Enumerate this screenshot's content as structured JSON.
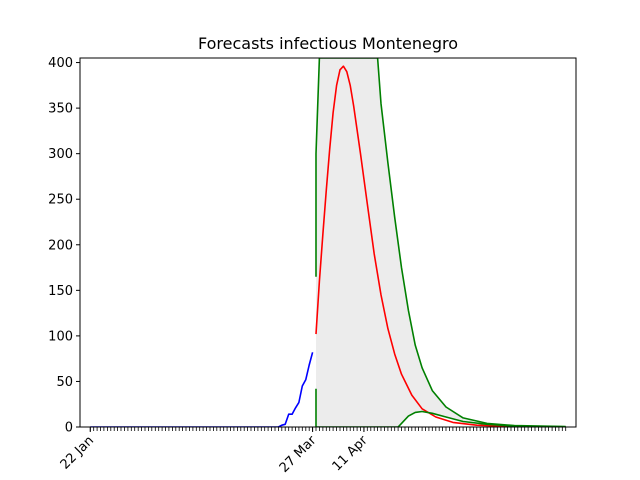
{
  "chart_data": {
    "type": "line",
    "title": "Forecasts infectious Montenegro",
    "xlabel": "",
    "ylabel": "",
    "x_start": "22 Jan",
    "x_end": "9 Jun",
    "xlim": [
      "19 Jan",
      "12 Jun"
    ],
    "ylim": [
      0,
      405
    ],
    "yticks": [
      0,
      50,
      100,
      150,
      200,
      250,
      300,
      350,
      400
    ],
    "xticks_labeled": [
      "22 Jan",
      "27 Mar",
      "11 Apr"
    ],
    "grid": false,
    "legend": "none",
    "colors": {
      "observed": "#0000ff",
      "forecast": "#ff0000",
      "bounds": "#008000",
      "band": "#ececec"
    },
    "series": [
      {
        "role": "observed",
        "points": [
          [
            "22 Jan",
            0
          ],
          [
            "17 Mar",
            0
          ],
          [
            "18 Mar",
            2
          ],
          [
            "19 Mar",
            3
          ],
          [
            "20 Mar",
            14
          ],
          [
            "21 Mar",
            14
          ],
          [
            "22 Mar",
            21
          ],
          [
            "23 Mar",
            27
          ],
          [
            "24 Mar",
            45
          ],
          [
            "25 Mar",
            52
          ],
          [
            "26 Mar",
            68
          ],
          [
            "27 Mar",
            82
          ]
        ]
      },
      {
        "role": "forecast",
        "points": [
          [
            "28 Mar",
            102
          ],
          [
            "29 Mar",
            160
          ],
          [
            "30 Mar",
            212
          ],
          [
            "31 Mar",
            260
          ],
          [
            "1 Apr",
            305
          ],
          [
            "2 Apr",
            345
          ],
          [
            "3 Apr",
            375
          ],
          [
            "4 Apr",
            392
          ],
          [
            "5 Apr",
            396
          ],
          [
            "6 Apr",
            390
          ],
          [
            "7 Apr",
            375
          ],
          [
            "8 Apr",
            352
          ],
          [
            "10 Apr",
            300
          ],
          [
            "12 Apr",
            245
          ],
          [
            "14 Apr",
            190
          ],
          [
            "16 Apr",
            145
          ],
          [
            "18 Apr",
            108
          ],
          [
            "20 Apr",
            80
          ],
          [
            "22 Apr",
            58
          ],
          [
            "25 Apr",
            35
          ],
          [
            "28 Apr",
            20
          ],
          [
            "2 May",
            11
          ],
          [
            "7 May",
            5
          ],
          [
            "14 May",
            2
          ],
          [
            "24 May",
            0.5
          ],
          [
            "9 Jun",
            0
          ]
        ]
      },
      {
        "role": "upper",
        "points": [
          [
            "28 Mar",
            165
          ],
          [
            "28 Mar",
            300
          ],
          [
            "29 Mar",
            405
          ],
          [
            "15 Apr",
            405
          ],
          [
            "16 Apr",
            355
          ],
          [
            "18 Apr",
            290
          ],
          [
            "20 Apr",
            230
          ],
          [
            "22 Apr",
            175
          ],
          [
            "24 Apr",
            128
          ],
          [
            "26 Apr",
            90
          ],
          [
            "28 Apr",
            65
          ],
          [
            "1 May",
            40
          ],
          [
            "5 May",
            22
          ],
          [
            "10 May",
            10
          ],
          [
            "17 May",
            4
          ],
          [
            "25 May",
            1.5
          ],
          [
            "9 Jun",
            0.5
          ]
        ]
      },
      {
        "role": "lower",
        "points": [
          [
            "28 Mar",
            42
          ],
          [
            "28 Mar",
            0
          ],
          [
            "21 Apr",
            0
          ],
          [
            "22 Apr",
            4
          ],
          [
            "24 Apr",
            12
          ],
          [
            "26 Apr",
            16
          ],
          [
            "28 Apr",
            17
          ],
          [
            "1 May",
            15
          ],
          [
            "5 May",
            11
          ],
          [
            "10 May",
            6
          ],
          [
            "17 May",
            3
          ],
          [
            "25 May",
            1
          ],
          [
            "9 Jun",
            0.2
          ]
        ]
      }
    ]
  }
}
